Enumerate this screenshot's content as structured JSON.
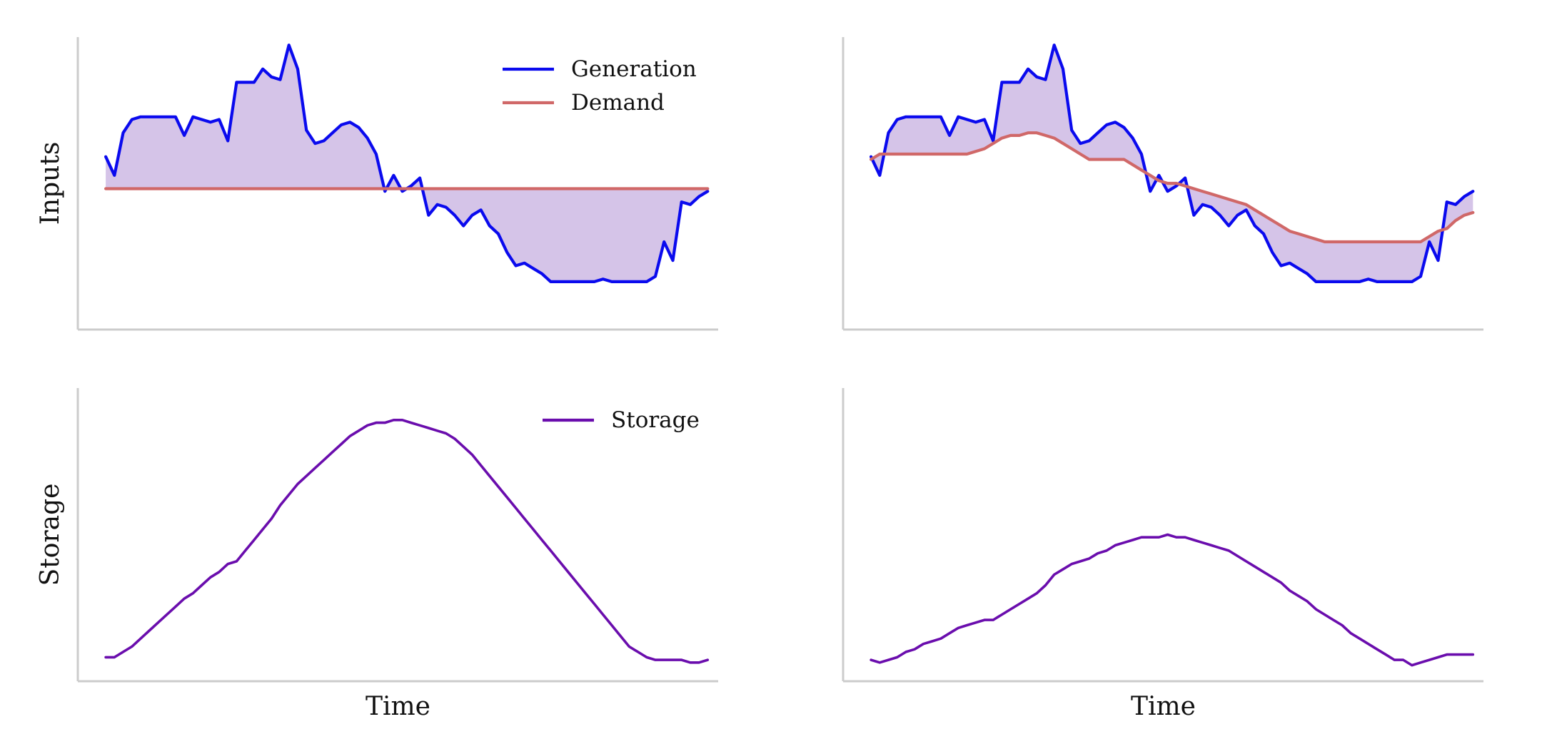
{
  "chart_data": [
    {
      "type": "line",
      "panel": "top-left",
      "ylabel": "Inputs",
      "xlabel": "",
      "ylim": [
        0,
        1.1
      ],
      "xlim": [
        -3.2,
        70.2
      ],
      "grid": false,
      "legend": {
        "placement": "top-right",
        "entries": [
          "Generation",
          "Demand"
        ]
      },
      "fill_between": [
        "Generation",
        "Demand"
      ],
      "series": [
        {
          "name": "Generation",
          "color": "#0a0aee",
          "values": [
            0.65,
            0.58,
            0.74,
            0.79,
            0.8,
            0.8,
            0.8,
            0.8,
            0.8,
            0.73,
            0.8,
            0.79,
            0.78,
            0.79,
            0.71,
            0.93,
            0.93,
            0.93,
            0.98,
            0.95,
            0.94,
            1.07,
            0.98,
            0.75,
            0.7,
            0.71,
            0.74,
            0.77,
            0.78,
            0.76,
            0.72,
            0.66,
            0.52,
            0.58,
            0.52,
            0.54,
            0.57,
            0.43,
            0.47,
            0.46,
            0.43,
            0.39,
            0.43,
            0.45,
            0.39,
            0.36,
            0.29,
            0.24,
            0.25,
            0.23,
            0.21,
            0.18,
            0.18,
            0.18,
            0.18,
            0.18,
            0.18,
            0.19,
            0.18,
            0.18,
            0.18,
            0.18,
            0.18,
            0.2,
            0.33,
            0.26,
            0.48,
            0.47,
            0.5,
            0.52
          ]
        },
        {
          "name": "Demand",
          "color": "#d06868",
          "values": [
            0.53,
            0.53,
            0.53,
            0.53,
            0.53,
            0.53,
            0.53,
            0.53,
            0.53,
            0.53,
            0.53,
            0.53,
            0.53,
            0.53,
            0.53,
            0.53,
            0.53,
            0.53,
            0.53,
            0.53,
            0.53,
            0.53,
            0.53,
            0.53,
            0.53,
            0.53,
            0.53,
            0.53,
            0.53,
            0.53,
            0.53,
            0.53,
            0.53,
            0.53,
            0.53,
            0.53,
            0.53,
            0.53,
            0.53,
            0.53,
            0.53,
            0.53,
            0.53,
            0.53,
            0.53,
            0.53,
            0.53,
            0.53,
            0.53,
            0.53,
            0.53,
            0.53,
            0.53,
            0.53,
            0.53,
            0.53,
            0.53,
            0.53,
            0.53,
            0.53,
            0.53,
            0.53,
            0.53,
            0.53,
            0.53,
            0.53,
            0.53,
            0.53,
            0.53,
            0.53
          ]
        }
      ]
    },
    {
      "type": "line",
      "panel": "top-right",
      "ylabel": "",
      "xlabel": "",
      "ylim": [
        0,
        1.1
      ],
      "xlim": [
        -3.2,
        70.2
      ],
      "grid": false,
      "fill_between": [
        "Generation",
        "Demand"
      ],
      "series": [
        {
          "name": "Generation",
          "color": "#0a0aee",
          "values": [
            0.65,
            0.58,
            0.74,
            0.79,
            0.8,
            0.8,
            0.8,
            0.8,
            0.8,
            0.73,
            0.8,
            0.79,
            0.78,
            0.79,
            0.71,
            0.93,
            0.93,
            0.93,
            0.98,
            0.95,
            0.94,
            1.07,
            0.98,
            0.75,
            0.7,
            0.71,
            0.74,
            0.77,
            0.78,
            0.76,
            0.72,
            0.66,
            0.52,
            0.58,
            0.52,
            0.54,
            0.57,
            0.43,
            0.47,
            0.46,
            0.43,
            0.39,
            0.43,
            0.45,
            0.39,
            0.36,
            0.29,
            0.24,
            0.25,
            0.23,
            0.21,
            0.18,
            0.18,
            0.18,
            0.18,
            0.18,
            0.18,
            0.19,
            0.18,
            0.18,
            0.18,
            0.18,
            0.18,
            0.2,
            0.33,
            0.26,
            0.48,
            0.47,
            0.5,
            0.52
          ]
        },
        {
          "name": "Demand",
          "color": "#d06868",
          "values": [
            0.64,
            0.66,
            0.66,
            0.66,
            0.66,
            0.66,
            0.66,
            0.66,
            0.66,
            0.66,
            0.66,
            0.66,
            0.67,
            0.68,
            0.7,
            0.72,
            0.73,
            0.73,
            0.74,
            0.74,
            0.73,
            0.72,
            0.7,
            0.68,
            0.66,
            0.64,
            0.64,
            0.64,
            0.64,
            0.64,
            0.62,
            0.6,
            0.58,
            0.56,
            0.55,
            0.55,
            0.54,
            0.53,
            0.52,
            0.51,
            0.5,
            0.49,
            0.48,
            0.47,
            0.45,
            0.43,
            0.41,
            0.39,
            0.37,
            0.36,
            0.35,
            0.34,
            0.33,
            0.33,
            0.33,
            0.33,
            0.33,
            0.33,
            0.33,
            0.33,
            0.33,
            0.33,
            0.33,
            0.33,
            0.35,
            0.37,
            0.38,
            0.41,
            0.43,
            0.44
          ]
        }
      ]
    },
    {
      "type": "line",
      "panel": "bottom-left",
      "ylabel": "Storage",
      "xlabel": "Time",
      "ylim": [
        0,
        1.1
      ],
      "xlim": [
        -3.2,
        70.2
      ],
      "grid": false,
      "legend": {
        "placement": "top-right",
        "entries": [
          "Storage"
        ]
      },
      "series": [
        {
          "name": "Storage",
          "color": "#6a0dad",
          "values": [
            0.09,
            0.09,
            0.11,
            0.13,
            0.16,
            0.19,
            0.22,
            0.25,
            0.28,
            0.31,
            0.33,
            0.36,
            0.39,
            0.41,
            0.44,
            0.45,
            0.49,
            0.53,
            0.57,
            0.61,
            0.66,
            0.7,
            0.74,
            0.77,
            0.8,
            0.83,
            0.86,
            0.89,
            0.92,
            0.94,
            0.96,
            0.97,
            0.97,
            0.98,
            0.98,
            0.97,
            0.96,
            0.95,
            0.94,
            0.93,
            0.91,
            0.88,
            0.85,
            0.81,
            0.77,
            0.73,
            0.69,
            0.65,
            0.61,
            0.57,
            0.53,
            0.49,
            0.45,
            0.41,
            0.37,
            0.33,
            0.29,
            0.25,
            0.21,
            0.17,
            0.13,
            0.11,
            0.09,
            0.08,
            0.08,
            0.08,
            0.08,
            0.07,
            0.07,
            0.08
          ]
        }
      ]
    },
    {
      "type": "line",
      "panel": "bottom-right",
      "ylabel": "",
      "xlabel": "Time",
      "ylim": [
        0,
        1.1
      ],
      "xlim": [
        -3.2,
        70.2
      ],
      "grid": false,
      "series": [
        {
          "name": "Storage",
          "color": "#6a0dad",
          "values": [
            0.08,
            0.07,
            0.08,
            0.09,
            0.11,
            0.12,
            0.14,
            0.15,
            0.16,
            0.18,
            0.2,
            0.21,
            0.22,
            0.23,
            0.23,
            0.25,
            0.27,
            0.29,
            0.31,
            0.33,
            0.36,
            0.4,
            0.42,
            0.44,
            0.45,
            0.46,
            0.48,
            0.49,
            0.51,
            0.52,
            0.53,
            0.54,
            0.54,
            0.54,
            0.55,
            0.54,
            0.54,
            0.53,
            0.52,
            0.51,
            0.5,
            0.49,
            0.47,
            0.45,
            0.43,
            0.41,
            0.39,
            0.37,
            0.34,
            0.32,
            0.3,
            0.27,
            0.25,
            0.23,
            0.21,
            0.18,
            0.16,
            0.14,
            0.12,
            0.1,
            0.08,
            0.08,
            0.06,
            0.07,
            0.08,
            0.09,
            0.1,
            0.1,
            0.1,
            0.1
          ]
        }
      ]
    }
  ],
  "style": {
    "fill_color": "#9b72c7",
    "fill_opacity": 0.42,
    "spine_color": "#cccccc"
  }
}
